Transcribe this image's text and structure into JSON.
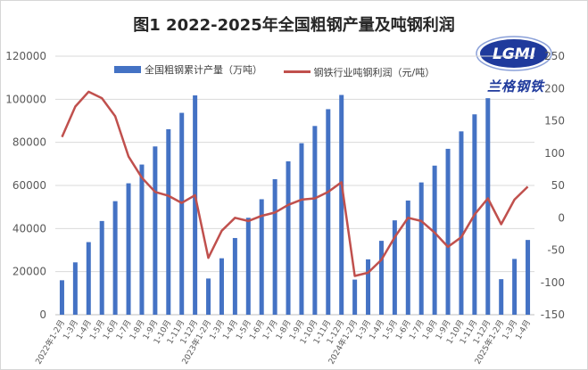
{
  "title": "图1 2022-2025年全国粗钢产量及吨钢利润",
  "logo": {
    "text": "LGMI",
    "chinese": "兰格钢铁"
  },
  "legend": {
    "bars": "全国粗钢累计产量（万吨）",
    "line": "钢铁行业吨钢利润（元/吨）"
  },
  "colors": {
    "bar": "#4472c4",
    "line": "#c0504d",
    "grid": "#d9d9d9",
    "axis_text": "#595959"
  },
  "chart_data": {
    "type": "bar+line",
    "title": "图1 2022-2025年全国粗钢产量及吨钢利润",
    "categories": [
      "2022年1-2月",
      "1-3月",
      "1-4月",
      "1-5月",
      "1-6月",
      "1-7月",
      "1-8月",
      "1-9月",
      "1-10月",
      "1-11月",
      "1-12月",
      "2023年1-2月",
      "1-3月",
      "1-4月",
      "1-5月",
      "1-6月",
      "1-7月",
      "1-8月",
      "1-9月",
      "1-10月",
      "1-11月",
      "1-12月",
      "2024年1-2月",
      "1-3月",
      "1-4月",
      "1-5月",
      "1-6月",
      "1-7月",
      "1-8月",
      "1-9月",
      "1-10月",
      "1-11月",
      "1-12月",
      "2025年1-2月",
      "1-3月",
      "1-4月"
    ],
    "series": [
      {
        "name": "全国粗钢累计产量（万吨）",
        "type": "bar",
        "axis": "left",
        "values": [
          16000,
          24300,
          33700,
          43500,
          52700,
          61000,
          69700,
          78100,
          86100,
          93700,
          101800,
          16800,
          26200,
          35600,
          45000,
          53600,
          62900,
          71200,
          79600,
          87600,
          95400,
          102000,
          16300,
          25700,
          34300,
          43800,
          53000,
          61400,
          69200,
          77000,
          85100,
          93000,
          100500,
          16500,
          25900,
          34700
        ]
      },
      {
        "name": "钢铁行业吨钢利润（元/吨）",
        "type": "line",
        "axis": "right",
        "values": [
          125,
          172,
          195,
          185,
          157,
          95,
          62,
          40,
          34,
          23,
          35,
          -62,
          -20,
          0,
          -5,
          3,
          8,
          20,
          28,
          30,
          40,
          55,
          -90,
          -85,
          -65,
          -30,
          0,
          -5,
          -23,
          -45,
          -30,
          5,
          30,
          -10,
          28,
          48
        ]
      }
    ],
    "y_left": {
      "min": 0,
      "max": 120000,
      "ticks": [
        0,
        20000,
        40000,
        60000,
        80000,
        100000,
        120000
      ]
    },
    "y_right": {
      "min": -150,
      "max": 250,
      "ticks": [
        -150,
        -100,
        -50,
        0,
        50,
        100,
        150,
        200,
        250
      ]
    }
  }
}
